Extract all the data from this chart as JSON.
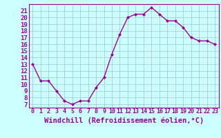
{
  "x": [
    0,
    1,
    2,
    3,
    4,
    5,
    6,
    7,
    8,
    9,
    10,
    11,
    12,
    13,
    14,
    15,
    16,
    17,
    18,
    19,
    20,
    21,
    22,
    23
  ],
  "y": [
    13,
    10.5,
    10.5,
    9,
    7.5,
    7,
    7.5,
    7.5,
    9.5,
    11,
    14.5,
    17.5,
    20,
    20.5,
    20.5,
    21.5,
    20.5,
    19.5,
    19.5,
    18.5,
    17,
    16.5,
    16.5,
    16
  ],
  "line_color": "#990099",
  "marker": "D",
  "marker_size": 2.0,
  "bg_color": "#ccffff",
  "grid_color": "#aacccc",
  "xlabel": "Windchill (Refroidissement éolien,°C)",
  "xlabel_color": "#990099",
  "xlabel_fontsize": 7.5,
  "ylabel_ticks": [
    7,
    8,
    9,
    10,
    11,
    12,
    13,
    14,
    15,
    16,
    17,
    18,
    19,
    20,
    21
  ],
  "ylim": [
    6.5,
    22.0
  ],
  "xlim": [
    -0.5,
    23.5
  ],
  "xtick_fontsize": 6.0,
  "ytick_fontsize": 6.5,
  "tick_color": "#990099",
  "border_color": "#990099",
  "linewidth": 1.0
}
